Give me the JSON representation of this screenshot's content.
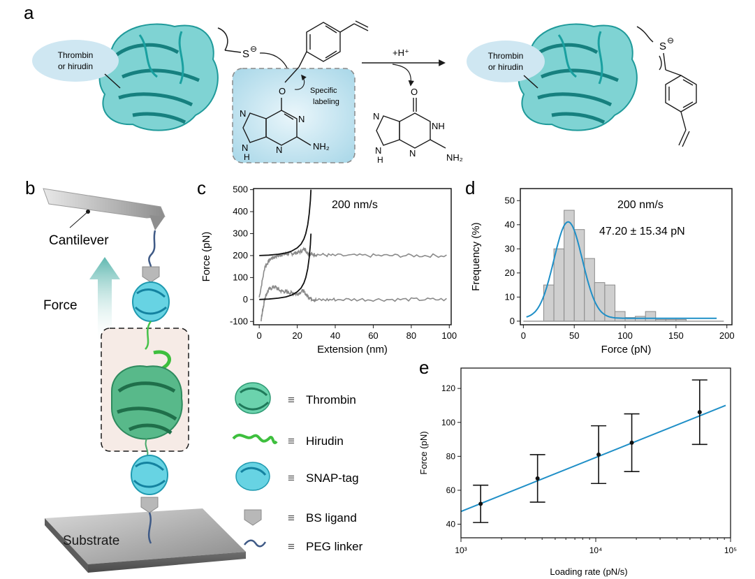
{
  "panel_labels": {
    "a": "a",
    "b": "b",
    "c": "c",
    "d": "d",
    "e": "e"
  },
  "panel_a": {
    "left_ellipse": [
      "Thrombin",
      "or hirudin"
    ],
    "right_ellipse": [
      "Thrombin",
      "or hirudin"
    ],
    "thiolate": "S",
    "thioether": "S",
    "minus": "⊖",
    "oxygen": "O",
    "labeling": [
      "Specific",
      "labeling"
    ],
    "proton": "+H⁺",
    "nh2_left": "NH₂",
    "nh2_right": "NH₂",
    "n": "N",
    "nh": "NH",
    "h": "H",
    "o_keto": "O"
  },
  "panel_b": {
    "cantilever": "Cantilever",
    "force": "Force",
    "substrate": "Substrate"
  },
  "legend": [
    {
      "icon": "thrombin-icon",
      "label": "Thrombin"
    },
    {
      "icon": "hirudin-icon",
      "label": "Hirudin"
    },
    {
      "icon": "snap-tag-icon",
      "label": "SNAP-tag"
    },
    {
      "icon": "bs-ligand-icon",
      "label": "BS ligand"
    },
    {
      "icon": "peg-linker-icon",
      "label": "PEG linker"
    }
  ],
  "legend_symbol": "≡",
  "colors": {
    "blue_fit": "#1f8fc7",
    "gray_trace": "#8a8a8a",
    "teal": "#2aa6a6",
    "cyan": "#39c6d8",
    "green": "#46c24a"
  },
  "chart_data": [
    {
      "id": "c",
      "type": "line",
      "annotation": "200 nm/s",
      "xlabel": "Extension (nm)",
      "ylabel": "Force (pN)",
      "xlim": [
        -3,
        101
      ],
      "ylim": [
        -115,
        505
      ],
      "xticks": [
        "0",
        "20",
        "40",
        "60",
        "80",
        "100"
      ],
      "yticks": [
        "-100",
        "0",
        "100",
        "200",
        "300",
        "400",
        "500"
      ],
      "series": [
        {
          "kind": "retract_trace",
          "offset": 200,
          "x": [
            0,
            3,
            6,
            9,
            12,
            15,
            18,
            21,
            24,
            25,
            27,
            30,
            40,
            60,
            80,
            100
          ],
          "y": [
            10,
            150,
            185,
            198,
            205,
            208,
            210,
            215,
            230,
            215,
            205,
            205,
            200,
            200,
            200,
            200
          ]
        },
        {
          "kind": "approach_trace",
          "offset": 0,
          "x": [
            1,
            2,
            3,
            5,
            8,
            11,
            14,
            17,
            20,
            23,
            25,
            27,
            30,
            40,
            60,
            80,
            100
          ],
          "y": [
            -95,
            -40,
            10,
            45,
            60,
            40,
            35,
            30,
            25,
            40,
            20,
            5,
            -3,
            0,
            0,
            0,
            0
          ]
        },
        {
          "kind": "wlc_fit_upper",
          "x": [
            0,
            5,
            10,
            14,
            17,
            20,
            22,
            23.5,
            24.5,
            25.5,
            26.3,
            26.9,
            27.2
          ],
          "y": [
            200,
            202,
            206,
            212,
            220,
            235,
            252,
            275,
            300,
            340,
            390,
            450,
            500
          ]
        },
        {
          "kind": "wlc_fit_lower",
          "x": [
            0,
            5,
            10,
            14,
            17,
            20,
            22,
            23.5,
            24.5,
            25.5,
            26.3,
            26.9,
            27.2
          ],
          "y": [
            0,
            2,
            6,
            12,
            20,
            35,
            52,
            75,
            100,
            140,
            190,
            250,
            300
          ]
        }
      ]
    },
    {
      "id": "d",
      "type": "bar",
      "annotation": "200 nm/s",
      "value_text": "47.20 ± 15.34 pN",
      "xlabel": "Force (pN)",
      "ylabel": "Frequency (%)",
      "xlim": [
        -3,
        205
      ],
      "ylim": [
        -1.5,
        55
      ],
      "xticks": [
        "0",
        "50",
        "100",
        "150",
        "200"
      ],
      "yticks": [
        "0",
        "10",
        "20",
        "30",
        "40",
        "50"
      ],
      "bin_width": 10,
      "bin_starts": [
        20,
        30,
        40,
        50,
        60,
        70,
        80,
        90,
        100,
        110,
        120,
        130,
        140,
        150,
        160,
        170,
        180
      ],
      "values": [
        15,
        30,
        46,
        38,
        26,
        16,
        15,
        4,
        1.5,
        2,
        4,
        0.7,
        0.7,
        0.7,
        0,
        0,
        0
      ],
      "fit": {
        "type": "gaussian",
        "mean": 44,
        "amplitude": 40,
        "sigma": 14,
        "baseline": 1.2,
        "x_range": [
          3,
          190
        ]
      }
    },
    {
      "id": "e",
      "type": "scatter",
      "xlabel": "Loading rate (pN/s)",
      "ylabel": "Force (pN)",
      "x_scale": "log",
      "xlim": [
        1000,
        100000
      ],
      "ylim": [
        32,
        132
      ],
      "xticks": [
        "10³",
        "10⁴",
        "10⁵"
      ],
      "yticks": [
        "40",
        "60",
        "80",
        "100",
        "120"
      ],
      "x": [
        1400,
        3700,
        10500,
        18500,
        59000
      ],
      "y": [
        52,
        67,
        81,
        88,
        106
      ],
      "err": [
        11,
        14,
        17,
        17,
        19
      ],
      "fit": {
        "type": "linear-log",
        "x": [
          1000,
          92000
        ],
        "y": [
          47.5,
          110
        ]
      }
    }
  ]
}
